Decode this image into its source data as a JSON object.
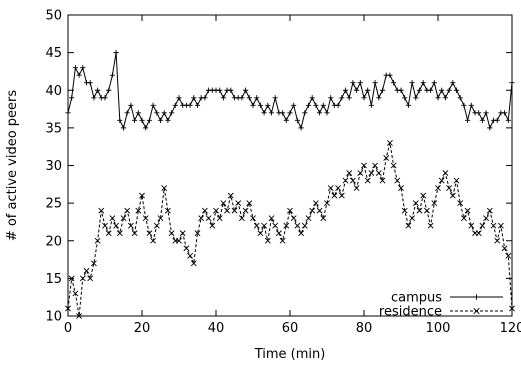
{
  "chart_data": {
    "type": "line",
    "xlabel": "Time (min)",
    "ylabel": "# of active video peers",
    "xlim": [
      0,
      120
    ],
    "ylim": [
      10,
      50
    ],
    "xticks": [
      0,
      20,
      40,
      60,
      80,
      100,
      120
    ],
    "yticks": [
      10,
      15,
      20,
      25,
      30,
      35,
      40,
      45,
      50
    ],
    "grid": false,
    "legend_position": "bottom-right",
    "series": [
      {
        "name": "campus",
        "color": "#000000",
        "marker": "plus",
        "dash": "solid",
        "x": [
          0,
          1,
          2,
          3,
          4,
          5,
          6,
          7,
          8,
          9,
          10,
          11,
          12,
          13,
          14,
          15,
          16,
          17,
          18,
          19,
          20,
          21,
          22,
          23,
          24,
          25,
          26,
          27,
          28,
          29,
          30,
          31,
          32,
          33,
          34,
          35,
          36,
          37,
          38,
          39,
          40,
          41,
          42,
          43,
          44,
          45,
          46,
          47,
          48,
          49,
          50,
          51,
          52,
          53,
          54,
          55,
          56,
          57,
          58,
          59,
          60,
          61,
          62,
          63,
          64,
          65,
          66,
          67,
          68,
          69,
          70,
          71,
          72,
          73,
          74,
          75,
          76,
          77,
          78,
          79,
          80,
          81,
          82,
          83,
          84,
          85,
          86,
          87,
          88,
          89,
          90,
          91,
          92,
          93,
          94,
          95,
          96,
          97,
          98,
          99,
          100,
          101,
          102,
          103,
          104,
          105,
          106,
          107,
          108,
          109,
          110,
          111,
          112,
          113,
          114,
          115,
          116,
          117,
          118,
          119,
          120
        ],
        "y": [
          37,
          39,
          43,
          42,
          43,
          41,
          41,
          39,
          40,
          39,
          39,
          40,
          42,
          45,
          36,
          35,
          37,
          38,
          36,
          37,
          36,
          35,
          36,
          38,
          37,
          36,
          37,
          36,
          37,
          38,
          39,
          38,
          38,
          38,
          39,
          38,
          39,
          39,
          40,
          40,
          40,
          40,
          39,
          40,
          40,
          39,
          39,
          39,
          40,
          39,
          38,
          39,
          38,
          37,
          38,
          37,
          39,
          37,
          37,
          36,
          37,
          38,
          36,
          35,
          37,
          38,
          39,
          38,
          37,
          38,
          37,
          39,
          38,
          38,
          39,
          40,
          39,
          41,
          40,
          41,
          39,
          40,
          38,
          41,
          39,
          40,
          42,
          42,
          41,
          40,
          40,
          39,
          38,
          41,
          39,
          40,
          41,
          40,
          40,
          41,
          39,
          40,
          39,
          40,
          41,
          40,
          39,
          38,
          36,
          38,
          37,
          37,
          36,
          37,
          35,
          36,
          36,
          37,
          37,
          36,
          41
        ]
      },
      {
        "name": "residence",
        "color": "#000000",
        "marker": "cross",
        "dash": "dashed",
        "x": [
          0,
          1,
          2,
          3,
          4,
          5,
          6,
          7,
          8,
          9,
          10,
          11,
          12,
          13,
          14,
          15,
          16,
          17,
          18,
          19,
          20,
          21,
          22,
          23,
          24,
          25,
          26,
          27,
          28,
          29,
          30,
          31,
          32,
          33,
          34,
          35,
          36,
          37,
          38,
          39,
          40,
          41,
          42,
          43,
          44,
          45,
          46,
          47,
          48,
          49,
          50,
          51,
          52,
          53,
          54,
          55,
          56,
          57,
          58,
          59,
          60,
          61,
          62,
          63,
          64,
          65,
          66,
          67,
          68,
          69,
          70,
          71,
          72,
          73,
          74,
          75,
          76,
          77,
          78,
          79,
          80,
          81,
          82,
          83,
          84,
          85,
          86,
          87,
          88,
          89,
          90,
          91,
          92,
          93,
          94,
          95,
          96,
          97,
          98,
          99,
          100,
          101,
          102,
          103,
          104,
          105,
          106,
          107,
          108,
          109,
          110,
          111,
          112,
          113,
          114,
          115,
          116,
          117,
          118,
          119,
          120
        ],
        "y": [
          11,
          15,
          13,
          10,
          15,
          16,
          15,
          17,
          20,
          24,
          22,
          21,
          23,
          22,
          21,
          23,
          24,
          22,
          21,
          24,
          26,
          23,
          21,
          20,
          22,
          23,
          27,
          24,
          21,
          20,
          20,
          21,
          19,
          18,
          17,
          21,
          23,
          24,
          23,
          22,
          24,
          23,
          25,
          24,
          26,
          24,
          25,
          23,
          24,
          25,
          23,
          22,
          21,
          22,
          20,
          23,
          22,
          21,
          20,
          22,
          24,
          23,
          22,
          21,
          22,
          23,
          24,
          25,
          24,
          23,
          25,
          27,
          26,
          27,
          26,
          28,
          29,
          28,
          27,
          29,
          30,
          28,
          29,
          30,
          29,
          28,
          31,
          33,
          30,
          28,
          27,
          24,
          22,
          23,
          25,
          24,
          26,
          24,
          22,
          25,
          27,
          28,
          29,
          27,
          26,
          28,
          25,
          23,
          24,
          22,
          21,
          21,
          22,
          23,
          24,
          22,
          20,
          22,
          19,
          18,
          11
        ]
      }
    ]
  }
}
